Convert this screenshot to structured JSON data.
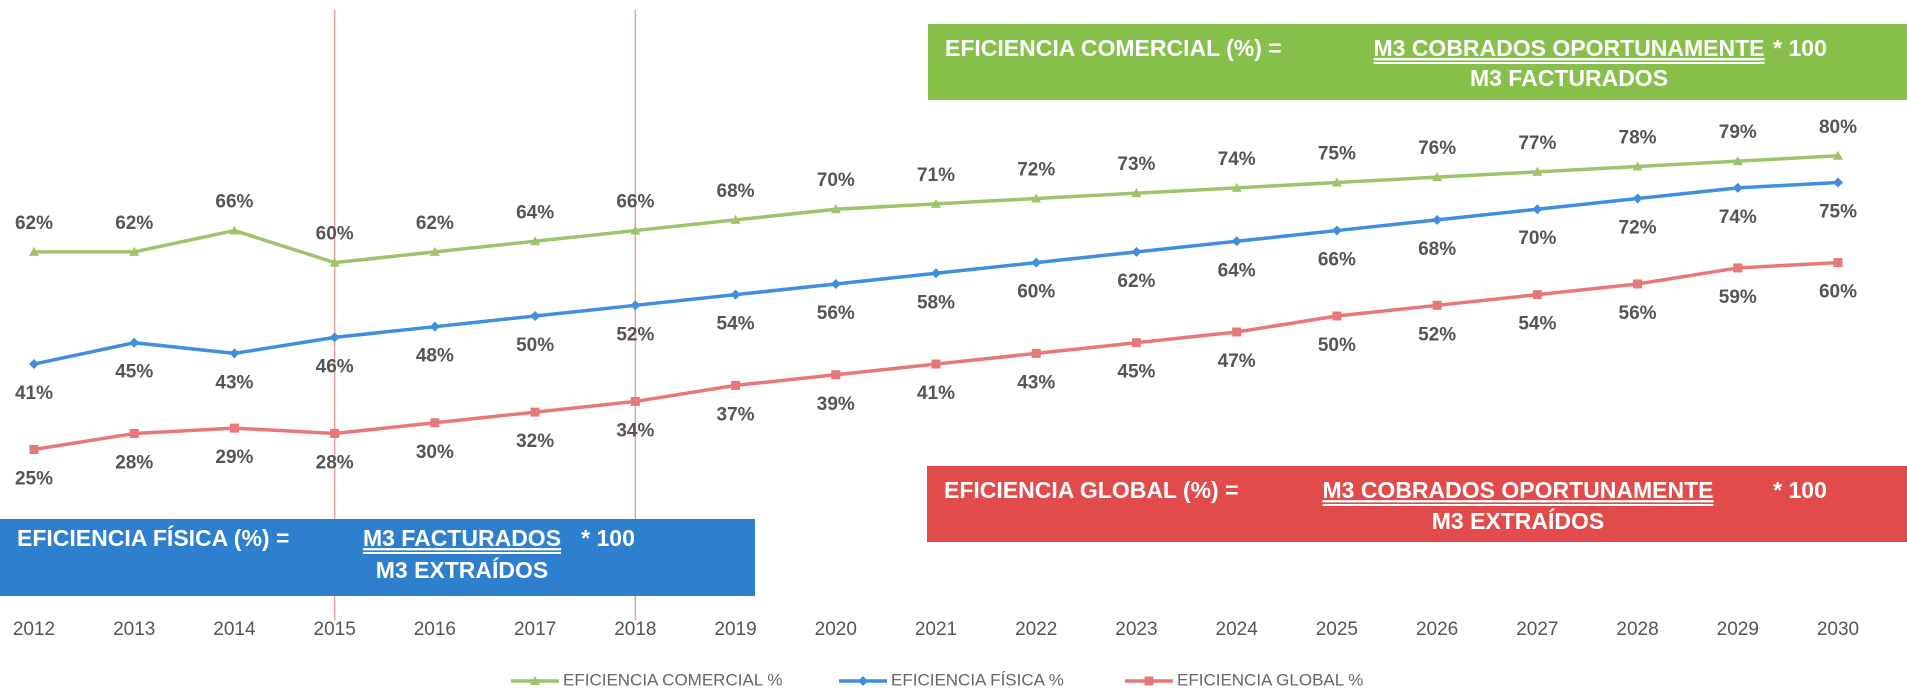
{
  "chart_data": {
    "type": "line",
    "categories": [
      "2012",
      "2013",
      "2014",
      "2015",
      "2016",
      "2017",
      "2018",
      "2019",
      "2020",
      "2021",
      "2022",
      "2023",
      "2024",
      "2025",
      "2026",
      "2027",
      "2028",
      "2029",
      "2030"
    ],
    "series": [
      {
        "name": "EFICIENCIA COMERCIAL %",
        "color": "#9dc46b",
        "marker": "triangle",
        "label_position": "above",
        "values": [
          62,
          62,
          66,
          60,
          62,
          64,
          66,
          68,
          70,
          71,
          72,
          73,
          74,
          75,
          76,
          77,
          78,
          79,
          80
        ],
        "value_labels": [
          "62%",
          "62%",
          "66%",
          "60%",
          "62%",
          "64%",
          "66%",
          "68%",
          "70%",
          "71%",
          "72%",
          "73%",
          "74%",
          "75%",
          "76%",
          "77%",
          "78%",
          "79%",
          "80%"
        ]
      },
      {
        "name": "EFICIENCIA FÍSICA %",
        "color": "#3f8fdc",
        "marker": "diamond",
        "label_position": "below",
        "values": [
          41,
          45,
          43,
          46,
          48,
          50,
          52,
          54,
          56,
          58,
          60,
          62,
          64,
          66,
          68,
          70,
          72,
          74,
          75
        ],
        "value_labels": [
          "41%",
          "45%",
          "43%",
          "46%",
          "48%",
          "50%",
          "52%",
          "54%",
          "56%",
          "58%",
          "60%",
          "62%",
          "64%",
          "66%",
          "68%",
          "70%",
          "72%",
          "74%",
          "75%"
        ]
      },
      {
        "name": "EFICIENCIA GLOBAL %",
        "color": "#e8777a",
        "marker": "square",
        "label_position": "below",
        "values": [
          25,
          28,
          29,
          28,
          30,
          32,
          34,
          37,
          39,
          41,
          43,
          45,
          47,
          50,
          52,
          54,
          56,
          59,
          60
        ],
        "value_labels": [
          "25%",
          "28%",
          "29%",
          "28%",
          "30%",
          "32%",
          "34%",
          "37%",
          "39%",
          "41%",
          "43%",
          "45%",
          "47%",
          "50%",
          "52%",
          "54%",
          "56%",
          "59%",
          "60%"
        ]
      }
    ],
    "vlines": [
      "2015",
      "2018"
    ],
    "vline_color": "#e8a0a0",
    "annotations": [
      {
        "label": "EFICIENCIA COMERCIAL (%) =",
        "numerator": "M3 COBRADOS OPORTUNAMENTE",
        "factor": "* 100",
        "denominator": "M3 FACTURADOS",
        "color": "#86c04a"
      },
      {
        "label": "EFICIENCIA FÍSICA (%) =",
        "numerator": "M3 FACTURADOS",
        "factor": "* 100",
        "denominator": "M3 EXTRAÍDOS",
        "color": "#2f7fcf"
      },
      {
        "label": "EFICIENCIA GLOBAL (%) =",
        "numerator": "M3 COBRADOS OPORTUNAMENTE",
        "factor": "* 100",
        "denominator": "M3 EXTRAÍDOS",
        "color": "#e14b4b"
      }
    ],
    "legend": "bottom"
  }
}
